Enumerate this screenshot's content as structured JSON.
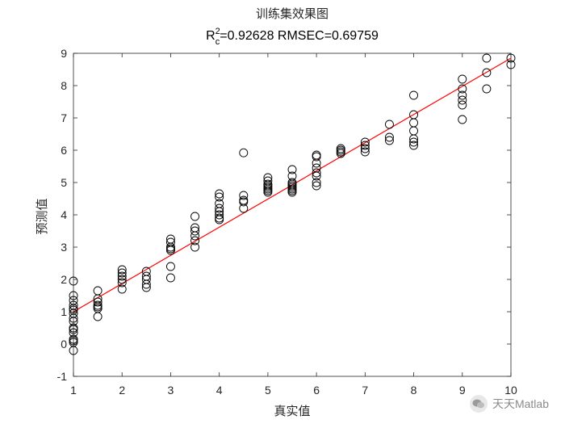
{
  "chart_data": {
    "type": "scatter",
    "title": "训练集效果图",
    "metrics": {
      "r2_prefix": "R",
      "r2_sup": "2",
      "r2_sub": "c",
      "r2_text": "=0.92628  RMSEC=0.69759"
    },
    "xlabel": "真实值",
    "ylabel": "预测值",
    "xlim": [
      1,
      10
    ],
    "ylim": [
      -1,
      9
    ],
    "xticks": [
      "1",
      "2",
      "3",
      "4",
      "5",
      "6",
      "7",
      "8",
      "9",
      "10"
    ],
    "yticks": [
      "-1",
      "0",
      "1",
      "2",
      "3",
      "4",
      "5",
      "6",
      "7",
      "8",
      "9"
    ],
    "grid": false,
    "marker": "open-circle",
    "marker_color": "#000000",
    "fit_line_color": "#ff0000",
    "fit_line": {
      "x": [
        1,
        10
      ],
      "y": [
        1.0,
        8.85
      ]
    },
    "points": [
      [
        1,
        1.95
      ],
      [
        1,
        1.5
      ],
      [
        1,
        1.35
      ],
      [
        1,
        1.2
      ],
      [
        1,
        1.1
      ],
      [
        1,
        1.05
      ],
      [
        1,
        0.95
      ],
      [
        1,
        0.8
      ],
      [
        1,
        0.7
      ],
      [
        1,
        0.5
      ],
      [
        1,
        0.45
      ],
      [
        1,
        0.35
      ],
      [
        1,
        0.15
      ],
      [
        1,
        0.1
      ],
      [
        1,
        0.05
      ],
      [
        1,
        -0.2
      ],
      [
        1.5,
        1.65
      ],
      [
        1.5,
        1.4
      ],
      [
        1.5,
        1.3
      ],
      [
        1.5,
        1.2
      ],
      [
        1.5,
        1.15
      ],
      [
        1.5,
        1.1
      ],
      [
        1.5,
        0.85
      ],
      [
        2,
        2.3
      ],
      [
        2,
        2.2
      ],
      [
        2,
        2.1
      ],
      [
        2,
        2.0
      ],
      [
        2,
        1.9
      ],
      [
        2,
        1.7
      ],
      [
        2.5,
        2.25
      ],
      [
        2.5,
        2.1
      ],
      [
        2.5,
        2.0
      ],
      [
        2.5,
        1.85
      ],
      [
        2.5,
        1.75
      ],
      [
        3,
        3.25
      ],
      [
        3,
        3.15
      ],
      [
        3,
        3.0
      ],
      [
        3,
        2.95
      ],
      [
        3,
        2.9
      ],
      [
        3,
        2.4
      ],
      [
        3,
        2.05
      ],
      [
        3.5,
        3.95
      ],
      [
        3.5,
        3.6
      ],
      [
        3.5,
        3.5
      ],
      [
        3.5,
        3.35
      ],
      [
        3.5,
        3.2
      ],
      [
        3.5,
        3.0
      ],
      [
        4,
        4.65
      ],
      [
        4,
        4.55
      ],
      [
        4,
        4.35
      ],
      [
        4,
        4.2
      ],
      [
        4,
        4.1
      ],
      [
        4,
        4.0
      ],
      [
        4,
        3.9
      ],
      [
        4,
        3.85
      ],
      [
        4.5,
        5.92
      ],
      [
        4.5,
        4.6
      ],
      [
        4.5,
        4.45
      ],
      [
        4.5,
        4.4
      ],
      [
        4.5,
        4.2
      ],
      [
        5,
        5.15
      ],
      [
        5,
        5.05
      ],
      [
        5,
        4.95
      ],
      [
        5,
        4.9
      ],
      [
        5,
        4.85
      ],
      [
        5,
        4.8
      ],
      [
        5,
        4.75
      ],
      [
        5,
        4.7
      ],
      [
        5.5,
        5.4
      ],
      [
        5.5,
        5.2
      ],
      [
        5.5,
        5.0
      ],
      [
        5.5,
        4.95
      ],
      [
        5.5,
        4.9
      ],
      [
        5.5,
        4.85
      ],
      [
        5.5,
        4.8
      ],
      [
        5.5,
        4.75
      ],
      [
        5.5,
        4.7
      ],
      [
        6,
        5.85
      ],
      [
        6,
        5.8
      ],
      [
        6,
        5.6
      ],
      [
        6,
        5.45
      ],
      [
        6,
        5.3
      ],
      [
        6,
        5.2
      ],
      [
        6,
        5.0
      ],
      [
        6,
        4.9
      ],
      [
        6.5,
        6.05
      ],
      [
        6.5,
        6.0
      ],
      [
        6.5,
        5.95
      ],
      [
        6.5,
        5.9
      ],
      [
        7,
        6.25
      ],
      [
        7,
        6.15
      ],
      [
        7,
        6.05
      ],
      [
        7,
        5.95
      ],
      [
        7.5,
        6.8
      ],
      [
        7.5,
        6.4
      ],
      [
        7.5,
        6.3
      ],
      [
        8,
        7.7
      ],
      [
        8,
        7.1
      ],
      [
        8,
        6.85
      ],
      [
        8,
        6.6
      ],
      [
        8,
        6.35
      ],
      [
        8,
        6.25
      ],
      [
        8,
        6.15
      ],
      [
        9,
        8.2
      ],
      [
        9,
        7.9
      ],
      [
        9,
        7.7
      ],
      [
        9,
        7.55
      ],
      [
        9,
        7.4
      ],
      [
        9,
        6.95
      ],
      [
        9.5,
        8.85
      ],
      [
        9.5,
        8.4
      ],
      [
        9.5,
        7.9
      ],
      [
        10,
        8.85
      ],
      [
        10,
        8.65
      ]
    ]
  },
  "watermark": {
    "icon": "wechat-icon",
    "text": "天天Matlab"
  }
}
